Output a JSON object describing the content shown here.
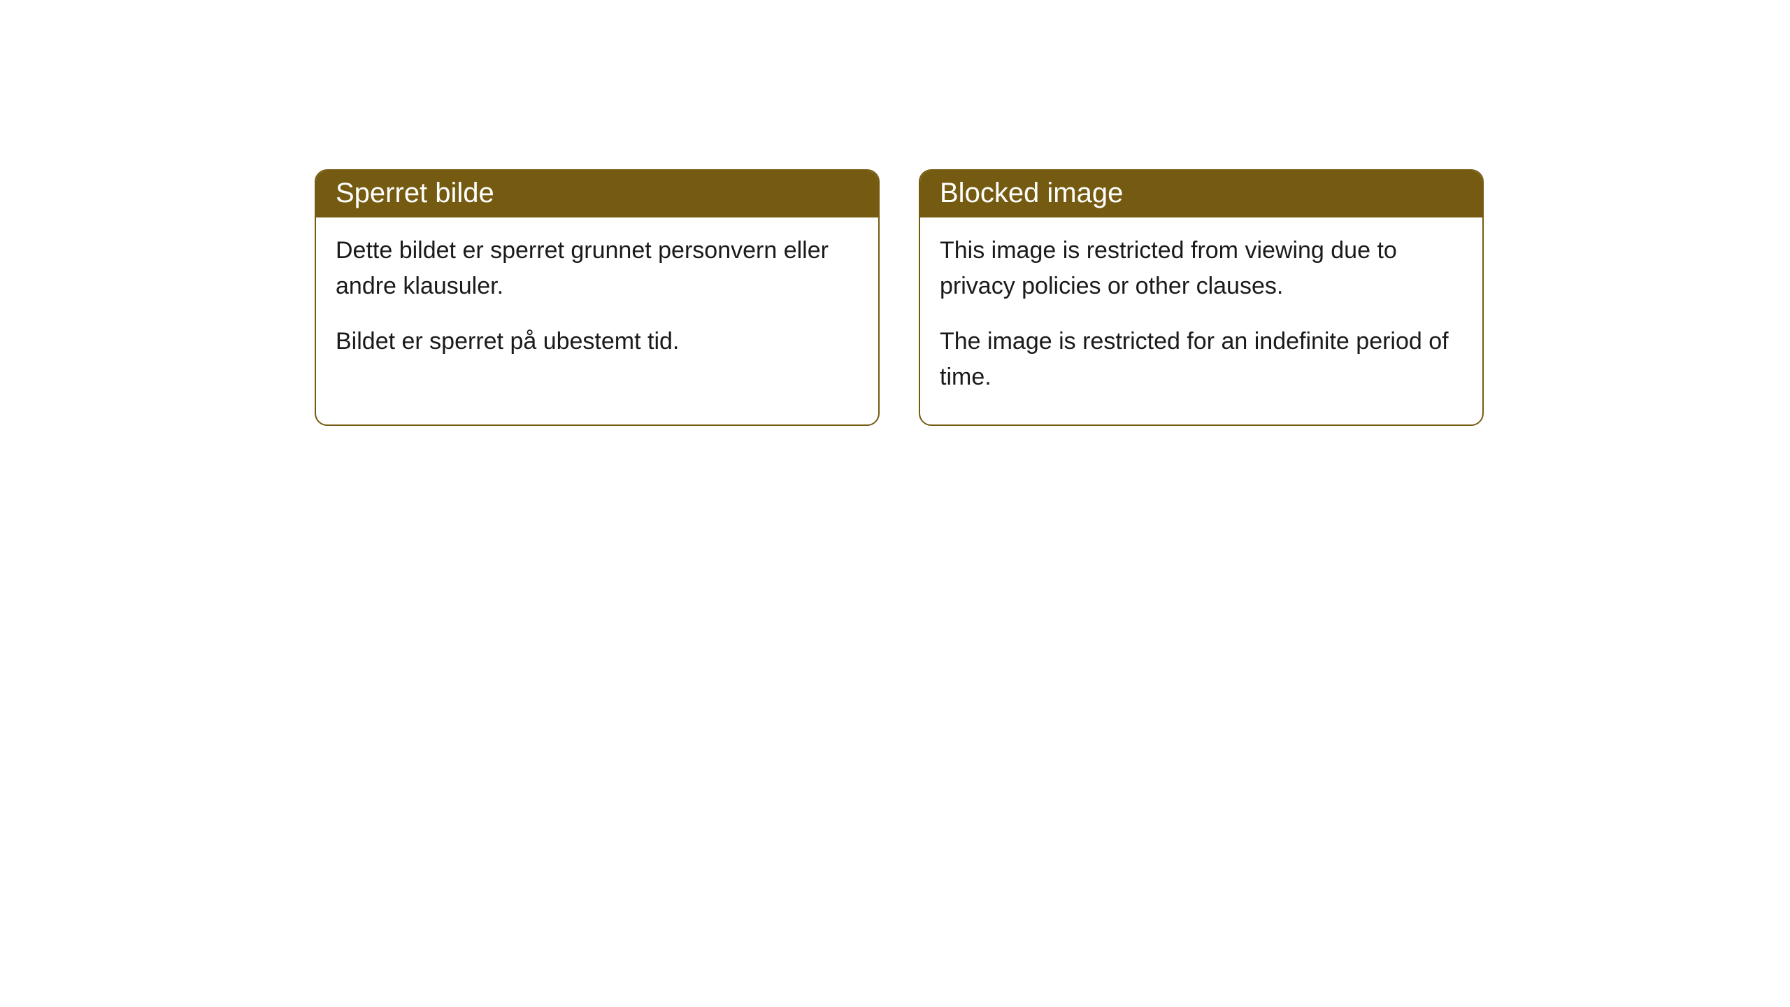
{
  "cards": [
    {
      "title": "Sperret bilde",
      "paragraph1": "Dette bildet er sperret grunnet personvern eller andre klausuler.",
      "paragraph2": "Bildet er sperret på ubestemt tid."
    },
    {
      "title": "Blocked image",
      "paragraph1": "This image is restricted from viewing due to privacy policies or other clauses.",
      "paragraph2": "The image is restricted for an indefinite period of time."
    }
  ],
  "styling": {
    "header_bg_color": "#755b12",
    "header_text_color": "#ffffff",
    "border_color": "#755b12",
    "body_bg_color": "#ffffff",
    "body_text_color": "#1a1a1a",
    "border_radius": 18,
    "title_fontsize": 40,
    "body_fontsize": 34
  }
}
